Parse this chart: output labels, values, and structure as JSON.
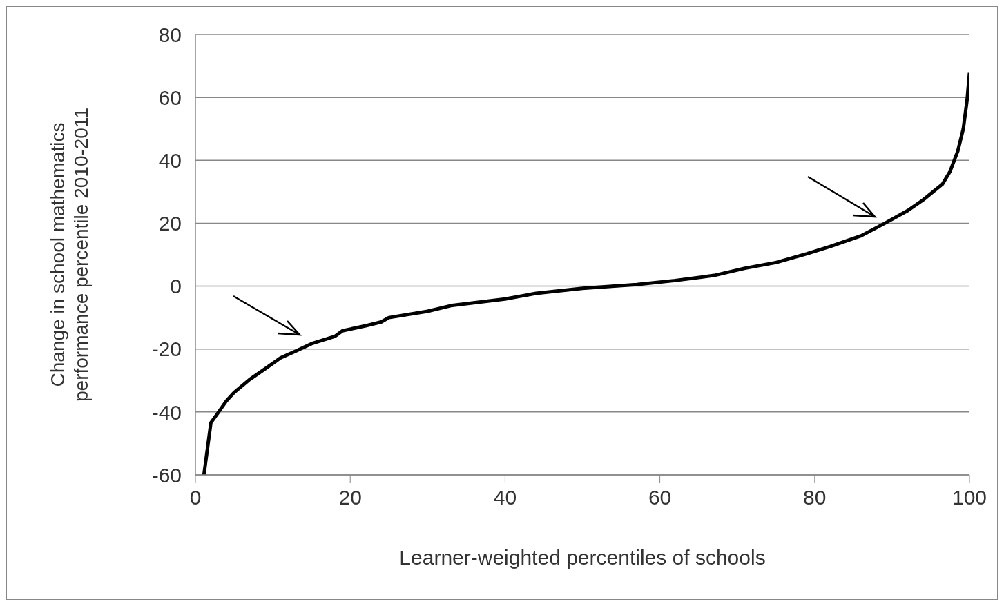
{
  "chart_data": {
    "type": "line",
    "xlabel": "Learner-weighted percentiles of schools",
    "ylabel": "Change in school mathematics performance percentile 2010-2011",
    "x": [
      1.1,
      2,
      3,
      4,
      5,
      7,
      9,
      11,
      13,
      15,
      18,
      19,
      22,
      24,
      25,
      30,
      33,
      40,
      44,
      50,
      57,
      62,
      67,
      71,
      75,
      79,
      82,
      86,
      89,
      92,
      94,
      96.5,
      97.5,
      98.5,
      99.2,
      99.7,
      100
    ],
    "series": [
      {
        "color": "#000000",
        "values": [
          -60,
          -43.4,
          -40,
          -36.5,
          -33.8,
          -29.7,
          -26.3,
          -22.8,
          -20.6,
          -18.3,
          -16,
          -14.2,
          -12.6,
          -11.4,
          -10,
          -8,
          -6.2,
          -4.1,
          -2.3,
          -0.7,
          0.5,
          1.8,
          3.4,
          5.7,
          7.5,
          10.3,
          12.6,
          16,
          19.9,
          24,
          27.4,
          32.4,
          36.5,
          43,
          50,
          59.4,
          67.8
        ]
      }
    ],
    "xlim": [
      0,
      100
    ],
    "xticks": [
      0,
      20,
      40,
      60,
      80,
      100
    ],
    "ylim": [
      -60,
      80
    ],
    "yticks": [
      -60,
      -40,
      -20,
      0,
      20,
      40,
      60,
      80
    ],
    "grid": "y",
    "marker": "none",
    "line_style": "solid"
  }
}
